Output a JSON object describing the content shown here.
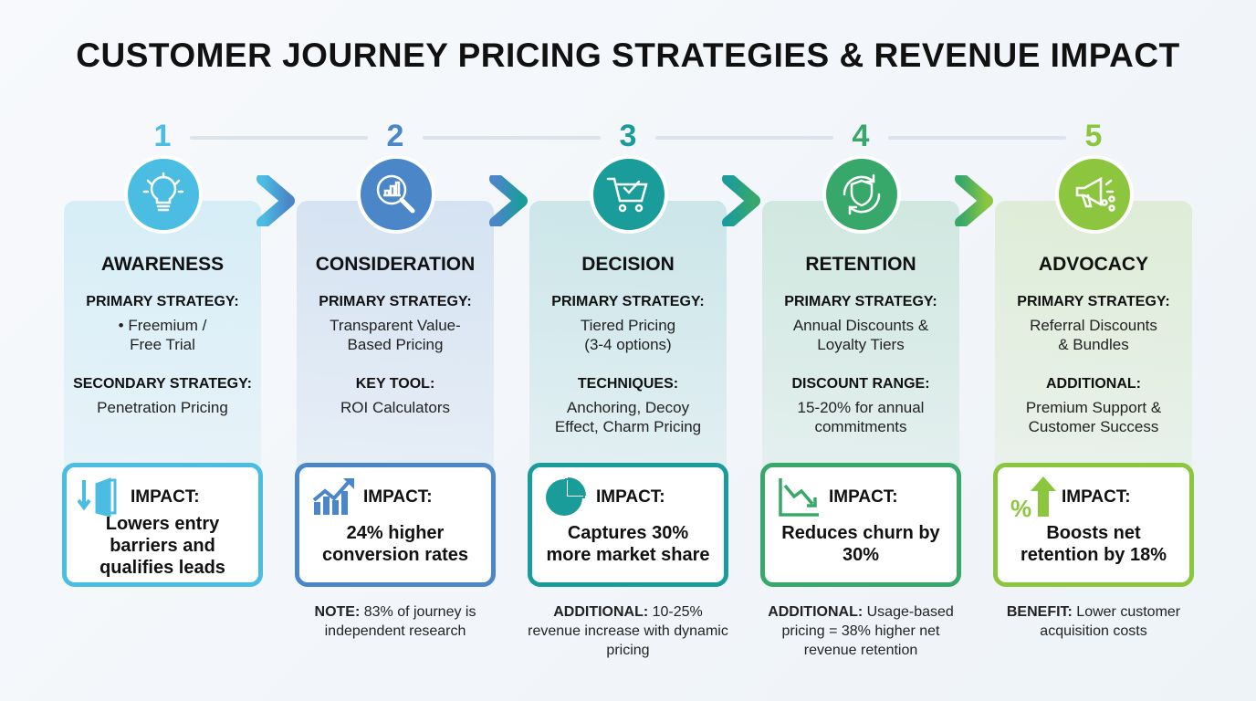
{
  "title": "CUSTOMER JOURNEY PRICING STRATEGIES & REVENUE IMPACT",
  "stages": [
    {
      "num": "1",
      "name": "AWARENESS",
      "color": "#4cbde2",
      "label1": "PRIMARY STRATEGY:",
      "text1": "• Freemium /\nFree Trial",
      "label2": "SECONDARY STRATEGY:",
      "text2": "Penetration Pricing",
      "impact_label": "IMPACT:",
      "impact": "Lowers entry barriers and qualifies leads",
      "note_label": "",
      "note": "",
      "icon": "lightbulb-icon",
      "impact_icon": "door-exit-icon"
    },
    {
      "num": "2",
      "name": "CONSIDERATION",
      "color": "#4a86c8",
      "label1": "PRIMARY STRATEGY:",
      "text1": "Transparent Value-\nBased Pricing",
      "label2": "KEY TOOL:",
      "text2": "ROI Calculators",
      "impact_label": "IMPACT:",
      "impact": "24% higher conversion rates",
      "note_label": "NOTE:",
      "note": " 83% of journey is independent research",
      "icon": "magnifier-chart-icon",
      "impact_icon": "growth-chart-icon"
    },
    {
      "num": "3",
      "name": "DECISION",
      "color": "#1a9c9a",
      "label1": "PRIMARY STRATEGY:",
      "text1": "Tiered Pricing\n(3-4 options)",
      "label2": "TECHNIQUES:",
      "text2": "Anchoring, Decoy\nEffect, Charm Pricing",
      "impact_label": "IMPACT:",
      "impact": "Captures 30% more market share",
      "note_label": "ADDITIONAL:",
      "note": " 10-25% revenue increase with dynamic pricing",
      "icon": "cart-check-icon",
      "impact_icon": "pie-chart-icon"
    },
    {
      "num": "4",
      "name": "RETENTION",
      "color": "#38a86a",
      "label1": "PRIMARY STRATEGY:",
      "text1": "Annual Discounts &\nLoyalty Tiers",
      "label2": "DISCOUNT RANGE:",
      "text2": "15-20% for annual\ncommitments",
      "impact_label": "IMPACT:",
      "impact": "Reduces churn by 30%",
      "note_label": "ADDITIONAL:",
      "note": " Usage-based pricing = 38% higher net revenue retention",
      "icon": "shield-refresh-icon",
      "impact_icon": "trend-down-icon"
    },
    {
      "num": "5",
      "name": "ADVOCACY",
      "color": "#8cc63f",
      "label1": "PRIMARY STRATEGY:",
      "text1": "Referral Discounts\n& Bundles",
      "label2": "ADDITIONAL:",
      "text2": "Premium Support &\nCustomer Success",
      "impact_label": "IMPACT:",
      "impact": "Boosts net retention by 18%",
      "note_label": "BENEFIT:",
      "note": " Lower customer acquisition costs",
      "icon": "megaphone-share-icon",
      "impact_icon": "percent-up-icon"
    }
  ]
}
